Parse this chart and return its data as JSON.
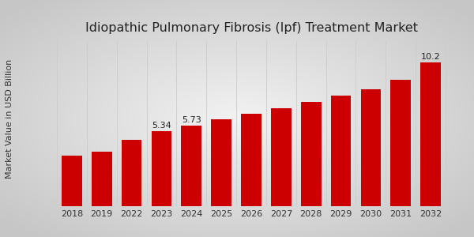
{
  "title": "Idiopathic Pulmonary Fibrosis (Ipf) Treatment Market",
  "ylabel": "Market Value in USD Billion",
  "categories": [
    "2018",
    "2019",
    "2022",
    "2023",
    "2024",
    "2025",
    "2026",
    "2027",
    "2028",
    "2029",
    "2030",
    "2031",
    "2032"
  ],
  "values": [
    3.6,
    3.85,
    4.7,
    5.34,
    5.73,
    6.2,
    6.55,
    6.95,
    7.4,
    7.85,
    8.3,
    9.0,
    10.2
  ],
  "bar_color": "#cc0000",
  "bar_labels": {
    "2023": "5.34",
    "2024": "5.73",
    "2032": "10.2"
  },
  "title_fontsize": 11.5,
  "label_fontsize": 8,
  "tick_fontsize": 8,
  "bottom_stripe_color": "#cc0000",
  "ylim": [
    0,
    11.8
  ],
  "grid_color": "#cccccc",
  "bg_light": "#f2f2f2",
  "bg_dark": "#c8c8c8"
}
